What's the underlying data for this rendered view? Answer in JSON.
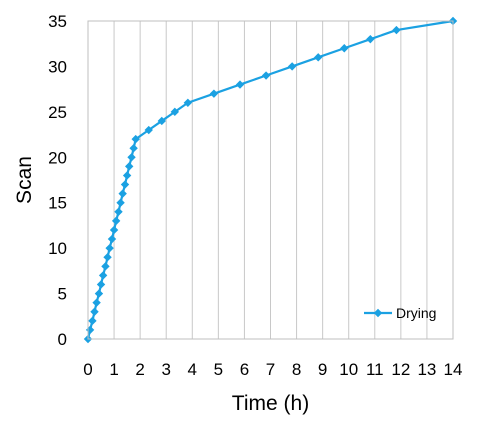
{
  "chart_data": {
    "type": "line",
    "title": "",
    "xlabel": "Time (h)",
    "ylabel": "Scan",
    "xlim": [
      0,
      14
    ],
    "ylim": [
      0,
      35
    ],
    "xticks": [
      0,
      1,
      2,
      3,
      4,
      5,
      6,
      7,
      8,
      9,
      10,
      11,
      12,
      13,
      14
    ],
    "yticks": [
      0,
      5,
      10,
      15,
      20,
      25,
      30,
      35
    ],
    "grid": "vertical",
    "legend_position": "bottom-right",
    "series": [
      {
        "name": "Drying",
        "color": "#1BA1E2",
        "marker": "diamond",
        "points": [
          [
            0.0,
            0
          ],
          [
            0.08,
            1
          ],
          [
            0.17,
            2
          ],
          [
            0.25,
            3
          ],
          [
            0.33,
            4
          ],
          [
            0.42,
            5
          ],
          [
            0.5,
            6
          ],
          [
            0.58,
            7
          ],
          [
            0.67,
            8
          ],
          [
            0.75,
            9
          ],
          [
            0.83,
            10
          ],
          [
            0.92,
            11
          ],
          [
            1.0,
            12
          ],
          [
            1.08,
            13
          ],
          [
            1.17,
            14
          ],
          [
            1.25,
            15
          ],
          [
            1.33,
            16
          ],
          [
            1.42,
            17
          ],
          [
            1.5,
            18
          ],
          [
            1.58,
            19
          ],
          [
            1.67,
            20
          ],
          [
            1.75,
            21
          ],
          [
            1.83,
            22
          ],
          [
            2.33,
            23
          ],
          [
            2.83,
            24
          ],
          [
            3.33,
            25
          ],
          [
            3.83,
            26
          ],
          [
            4.83,
            27
          ],
          [
            5.83,
            28
          ],
          [
            6.83,
            29
          ],
          [
            7.83,
            30
          ],
          [
            8.83,
            31
          ],
          [
            9.83,
            32
          ],
          [
            10.83,
            33
          ],
          [
            11.83,
            34
          ],
          [
            14.0,
            35
          ]
        ]
      }
    ]
  }
}
